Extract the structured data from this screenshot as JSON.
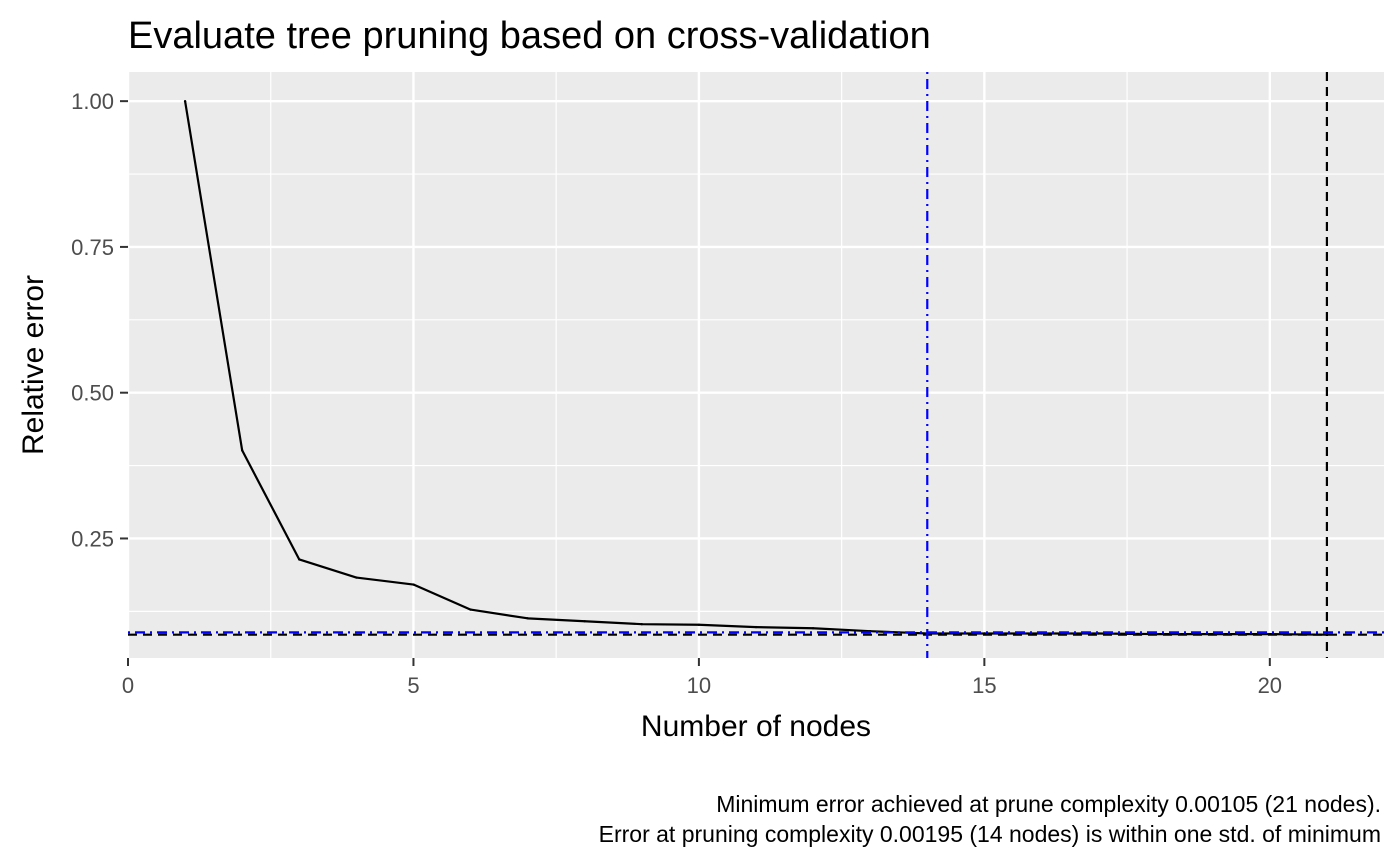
{
  "chart_data": {
    "type": "line",
    "title": "Evaluate tree pruning based on cross-validation",
    "xlabel": "Number of nodes",
    "ylabel": "Relative error",
    "xlim": [
      0,
      22
    ],
    "ylim": [
      0.045,
      1.05
    ],
    "x_ticks": [
      0,
      5,
      10,
      15,
      20
    ],
    "x_tick_labels": [
      "0",
      "5",
      "10",
      "15",
      "20"
    ],
    "y_ticks": [
      0.25,
      0.5,
      0.75,
      1.0
    ],
    "y_tick_labels": [
      "0.25",
      "0.50",
      "0.75",
      "1.00"
    ],
    "grid": true,
    "background": "#ebebeb",
    "series": [
      {
        "color": "#000000",
        "x": [
          1,
          2,
          3,
          4,
          5,
          6,
          7,
          8,
          9,
          10,
          11,
          12,
          13,
          14,
          15,
          16,
          17,
          18,
          19,
          20,
          21
        ],
        "values": [
          1.0,
          0.401,
          0.214,
          0.183,
          0.171,
          0.128,
          0.113,
          0.108,
          0.103,
          0.102,
          0.098,
          0.096,
          0.091,
          0.087,
          0.087,
          0.087,
          0.087,
          0.086,
          0.086,
          0.086,
          0.085
        ]
      }
    ],
    "reference_lines": [
      {
        "orientation": "horizontal",
        "value": 0.085,
        "color": "#000000",
        "style": "dashed"
      },
      {
        "orientation": "vertical",
        "value": 21,
        "color": "#000000",
        "style": "dashed"
      },
      {
        "orientation": "horizontal",
        "value": 0.089,
        "color": "#0000ff",
        "style": "dotdash"
      },
      {
        "orientation": "vertical",
        "value": 14,
        "color": "#0000ff",
        "style": "dotdash"
      }
    ],
    "caption_lines": [
      "Minimum error achieved at prune complexity 0.00105 (21 nodes).",
      "Error at pruning complexity 0.00195 (14 nodes) is within one std. of minimum"
    ]
  }
}
